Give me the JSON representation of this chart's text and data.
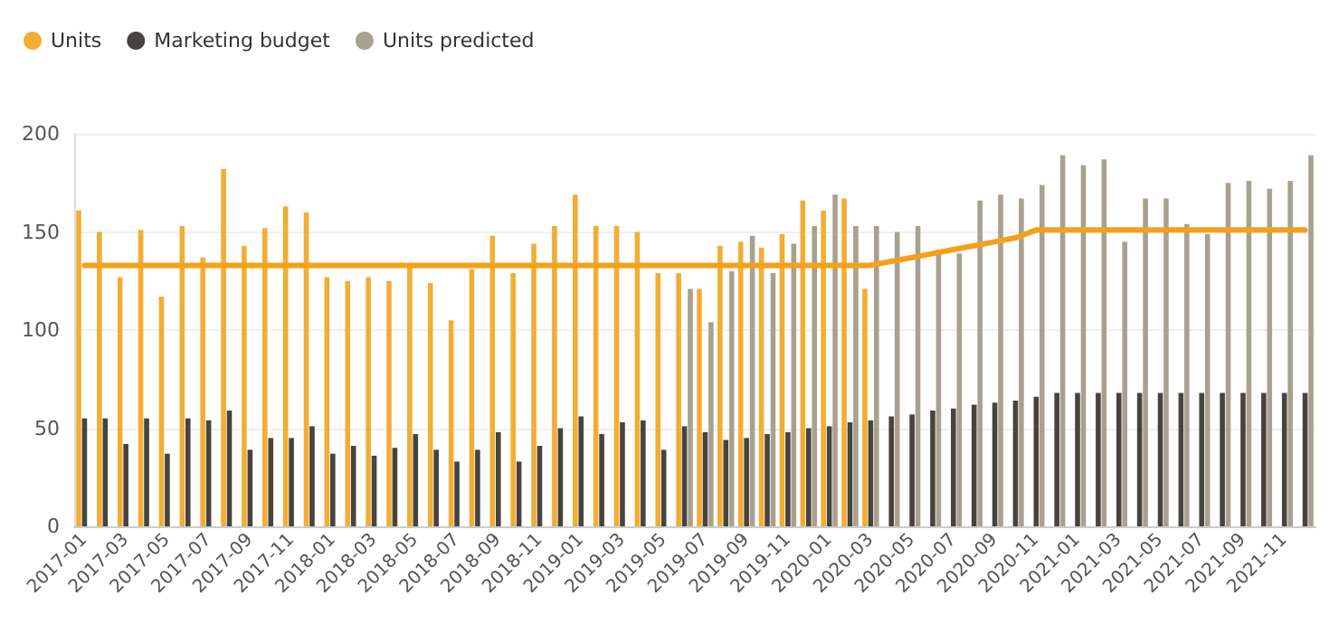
{
  "chart_data": {
    "type": "bar",
    "categories": [
      "2017-01",
      null,
      "2017-03",
      null,
      "2017-05",
      null,
      "2017-07",
      null,
      "2017-09",
      null,
      "2017-11",
      null,
      "2018-01",
      null,
      "2018-03",
      null,
      "2018-05",
      null,
      "2018-07",
      null,
      "2018-09",
      null,
      "2018-11",
      null,
      "2019-01",
      null,
      "2019-03",
      null,
      "2019-05",
      null,
      "2019-07",
      null,
      "2019-09",
      null,
      "2019-11",
      null,
      "2020-01",
      null,
      "2020-03",
      null,
      "2020-05",
      null,
      "2020-07",
      null,
      "2020-09",
      null,
      "2020-11",
      null,
      "2021-01",
      null,
      "2021-03",
      null,
      "2021-05",
      null,
      "2021-07",
      null,
      "2021-09",
      null,
      "2021-11",
      null
    ],
    "series": [
      {
        "name": "Units",
        "color": "#f2ad33",
        "values": [
          161,
          150,
          127,
          151,
          117,
          153,
          137,
          182,
          143,
          152,
          163,
          160,
          127,
          125,
          127,
          125,
          132,
          124,
          105,
          131,
          148,
          129,
          144,
          153,
          169,
          153,
          153,
          150,
          129,
          129,
          121,
          143,
          145,
          142,
          149,
          166,
          161,
          167,
          121,
          null,
          null,
          null,
          null,
          null,
          null,
          null,
          null,
          null,
          null,
          null,
          null,
          null,
          null,
          null,
          null,
          null,
          null,
          null,
          null,
          null
        ]
      },
      {
        "name": "Marketing budget",
        "color": "#47433d",
        "values": [
          55,
          55,
          42,
          55,
          37,
          55,
          54,
          59,
          39,
          45,
          45,
          51,
          37,
          41,
          36,
          40,
          47,
          39,
          33,
          39,
          48,
          33,
          41,
          50,
          56,
          47,
          53,
          54,
          39,
          51,
          48,
          44,
          45,
          47,
          48,
          50,
          51,
          53,
          54,
          56,
          57,
          59,
          60,
          62,
          63,
          64,
          66,
          68,
          68,
          68,
          68,
          68,
          68,
          68,
          68,
          68,
          68,
          68,
          68,
          68
        ]
      },
      {
        "name": "Units predicted",
        "color": "#a8a190",
        "values": [
          null,
          null,
          null,
          null,
          null,
          null,
          null,
          null,
          null,
          null,
          null,
          null,
          null,
          null,
          null,
          null,
          null,
          null,
          null,
          null,
          null,
          null,
          null,
          null,
          null,
          null,
          null,
          null,
          null,
          121,
          104,
          130,
          148,
          129,
          144,
          153,
          169,
          153,
          153,
          150,
          153,
          141,
          139,
          166,
          169,
          167,
          174,
          189,
          184,
          187,
          145,
          167,
          167,
          154,
          149,
          175,
          176,
          172,
          176,
          189
        ]
      },
      {
        "type": "line",
        "color": "#f5a01a",
        "values": [
          133,
          133,
          133,
          133,
          133,
          133,
          133,
          133,
          133,
          133,
          133,
          133,
          133,
          133,
          133,
          133,
          133,
          133,
          133,
          133,
          133,
          133,
          133,
          133,
          133,
          133,
          133,
          133,
          133,
          133,
          133,
          133,
          133,
          133,
          133,
          133,
          133,
          133,
          133,
          135,
          137,
          139,
          141,
          143,
          145,
          147,
          151,
          151,
          151,
          151,
          151,
          151,
          151,
          151,
          151,
          151,
          151,
          151,
          151,
          151
        ]
      }
    ],
    "ylim": [
      0,
      200
    ],
    "yticks": [
      0,
      50,
      100,
      150,
      200
    ],
    "grid": "y",
    "legend": "top left"
  }
}
